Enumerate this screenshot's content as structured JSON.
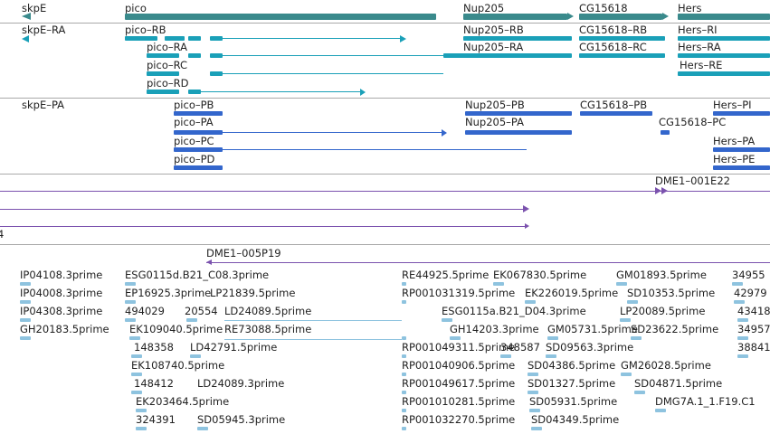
{
  "colors": {
    "gene": "#3a8a8c",
    "transcript_cg": "#1aa0b8",
    "transcript_cl": "#3366cc",
    "clone": "#7b52ae",
    "est": "#8ec3df",
    "separator": "#a9a9a9"
  },
  "tracks": {
    "genes": {
      "items": [
        {
          "label": "skpE"
        },
        {
          "label": "pico"
        },
        {
          "label": "Nup205"
        },
        {
          "label": "CG15618"
        },
        {
          "label": "Hers"
        }
      ]
    },
    "transcripts_a": {
      "items": [
        {
          "label": "skpE–RA"
        },
        {
          "label": "pico–RB"
        },
        {
          "label": "Nup205–RB"
        },
        {
          "label": "CG15618–RB"
        },
        {
          "label": "Hers–RI"
        },
        {
          "label": "pico–RA"
        },
        {
          "label": "Nup205–RA"
        },
        {
          "label": "CG15618–RC"
        },
        {
          "label": "Hers–RA"
        },
        {
          "label": "pico–RC"
        },
        {
          "label": "Hers–RE"
        },
        {
          "label": "pico–RD"
        }
      ]
    },
    "transcripts_b": {
      "items": [
        {
          "label": "skpE–PA"
        },
        {
          "label": "pico–PB"
        },
        {
          "label": "Nup205–PB"
        },
        {
          "label": "CG15618–PB"
        },
        {
          "label": "Hers–PI"
        },
        {
          "label": "pico–PA"
        },
        {
          "label": "Nup205–PA"
        },
        {
          "label": "CG15618–PC"
        },
        {
          "label": "pico–PC"
        },
        {
          "label": "Hers–PA"
        },
        {
          "label": "pico–PD"
        },
        {
          "label": "Hers–PE"
        }
      ]
    },
    "clones": {
      "items": [
        {
          "label": "DME1–001E22"
        },
        {
          "label": "4"
        },
        {
          "label": "DME1–005P19"
        }
      ]
    },
    "ests": {
      "items": [
        {
          "label": "IP04108.3prime"
        },
        {
          "label": "IP04008.3prime"
        },
        {
          "label": "IP04308.3prime"
        },
        {
          "label": "GH20183.5prime"
        },
        {
          "label": "ESG0115d.B21_C08.3prime"
        },
        {
          "label": "EP16925.3prime"
        },
        {
          "label": "494029"
        },
        {
          "label": "EK109040.5prime"
        },
        {
          "label": "148358"
        },
        {
          "label": "EK108740.5prime"
        },
        {
          "label": "148412"
        },
        {
          "label": "EK203464.5prime"
        },
        {
          "label": "324391"
        },
        {
          "label": "LP21839.5prime"
        },
        {
          "label": "20554"
        },
        {
          "label": "LD24089.5prime"
        },
        {
          "label": "RE73088.5prime"
        },
        {
          "label": "LD42791.5prime"
        },
        {
          "label": "LD24089.3prime"
        },
        {
          "label": "SD05945.3prime"
        },
        {
          "label": "RE44925.5prime"
        },
        {
          "label": "RP001031319.5prime"
        },
        {
          "label": "RP001049311.5prime"
        },
        {
          "label": "RP001040906.5prime"
        },
        {
          "label": "RP001049617.5prime"
        },
        {
          "label": "RP001010281.5prime"
        },
        {
          "label": "RP001032270.5prime"
        },
        {
          "label": "EK067830.5prime"
        },
        {
          "label": "EK226019.5prime"
        },
        {
          "label": "ESG0115a.B21_D04.3prime"
        },
        {
          "label": "GH14203.3prime"
        },
        {
          "label": "GM05731.5prime"
        },
        {
          "label": "348587"
        },
        {
          "label": "SD09563.3prime"
        },
        {
          "label": "SD04386.5prime"
        },
        {
          "label": "SD01327.5prime"
        },
        {
          "label": "SD05931.5prime"
        },
        {
          "label": "SD04349.5prime"
        },
        {
          "label": "GM01893.5prime"
        },
        {
          "label": "SD10353.5prime"
        },
        {
          "label": "LP20089.5prime"
        },
        {
          "label": "SD23622.5prime"
        },
        {
          "label": "GM26028.5prime"
        },
        {
          "label": "SD04871.5prime"
        },
        {
          "label": "DMG7A.1_1.F19.C1"
        },
        {
          "label": "34955"
        },
        {
          "label": "42979"
        },
        {
          "label": "43418"
        },
        {
          "label": "34957"
        },
        {
          "label": "38841"
        }
      ]
    }
  }
}
